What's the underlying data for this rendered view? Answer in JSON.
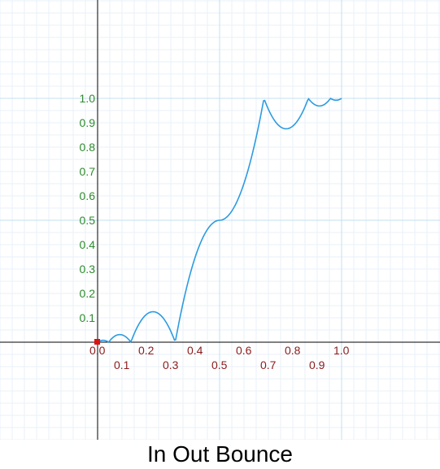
{
  "title": "In Out Bounce",
  "chart_data": {
    "type": "line",
    "title": "In Out Bounce",
    "xlabel": "",
    "ylabel": "",
    "xlim": [
      -0.4,
      1.4
    ],
    "ylim": [
      -0.4,
      1.4
    ],
    "grid": true,
    "x_ticks_upper": [
      "0.0",
      "0.2",
      "0.4",
      "0.6",
      "0.8",
      "1.0"
    ],
    "x_ticks_lower": [
      "0.1",
      "0.3",
      "0.5",
      "0.7",
      "0.9"
    ],
    "y_ticks": [
      "0.1",
      "0.2",
      "0.3",
      "0.4",
      "0.5",
      "0.6",
      "0.7",
      "0.8",
      "0.9",
      "1.0"
    ],
    "x_origin_label": "0",
    "series": [
      {
        "easing": "in-out-bounce",
        "samples": 200,
        "color": "#2d9be0"
      }
    ],
    "origin_marker_color": "#dd1111",
    "colors": {
      "axis": "#000000",
      "grid_major": "#c5dff0",
      "grid_minor": "#e9f2f8",
      "y_tick_label": "#2e8b2e",
      "x_tick_label": "#8b1a1a"
    }
  }
}
